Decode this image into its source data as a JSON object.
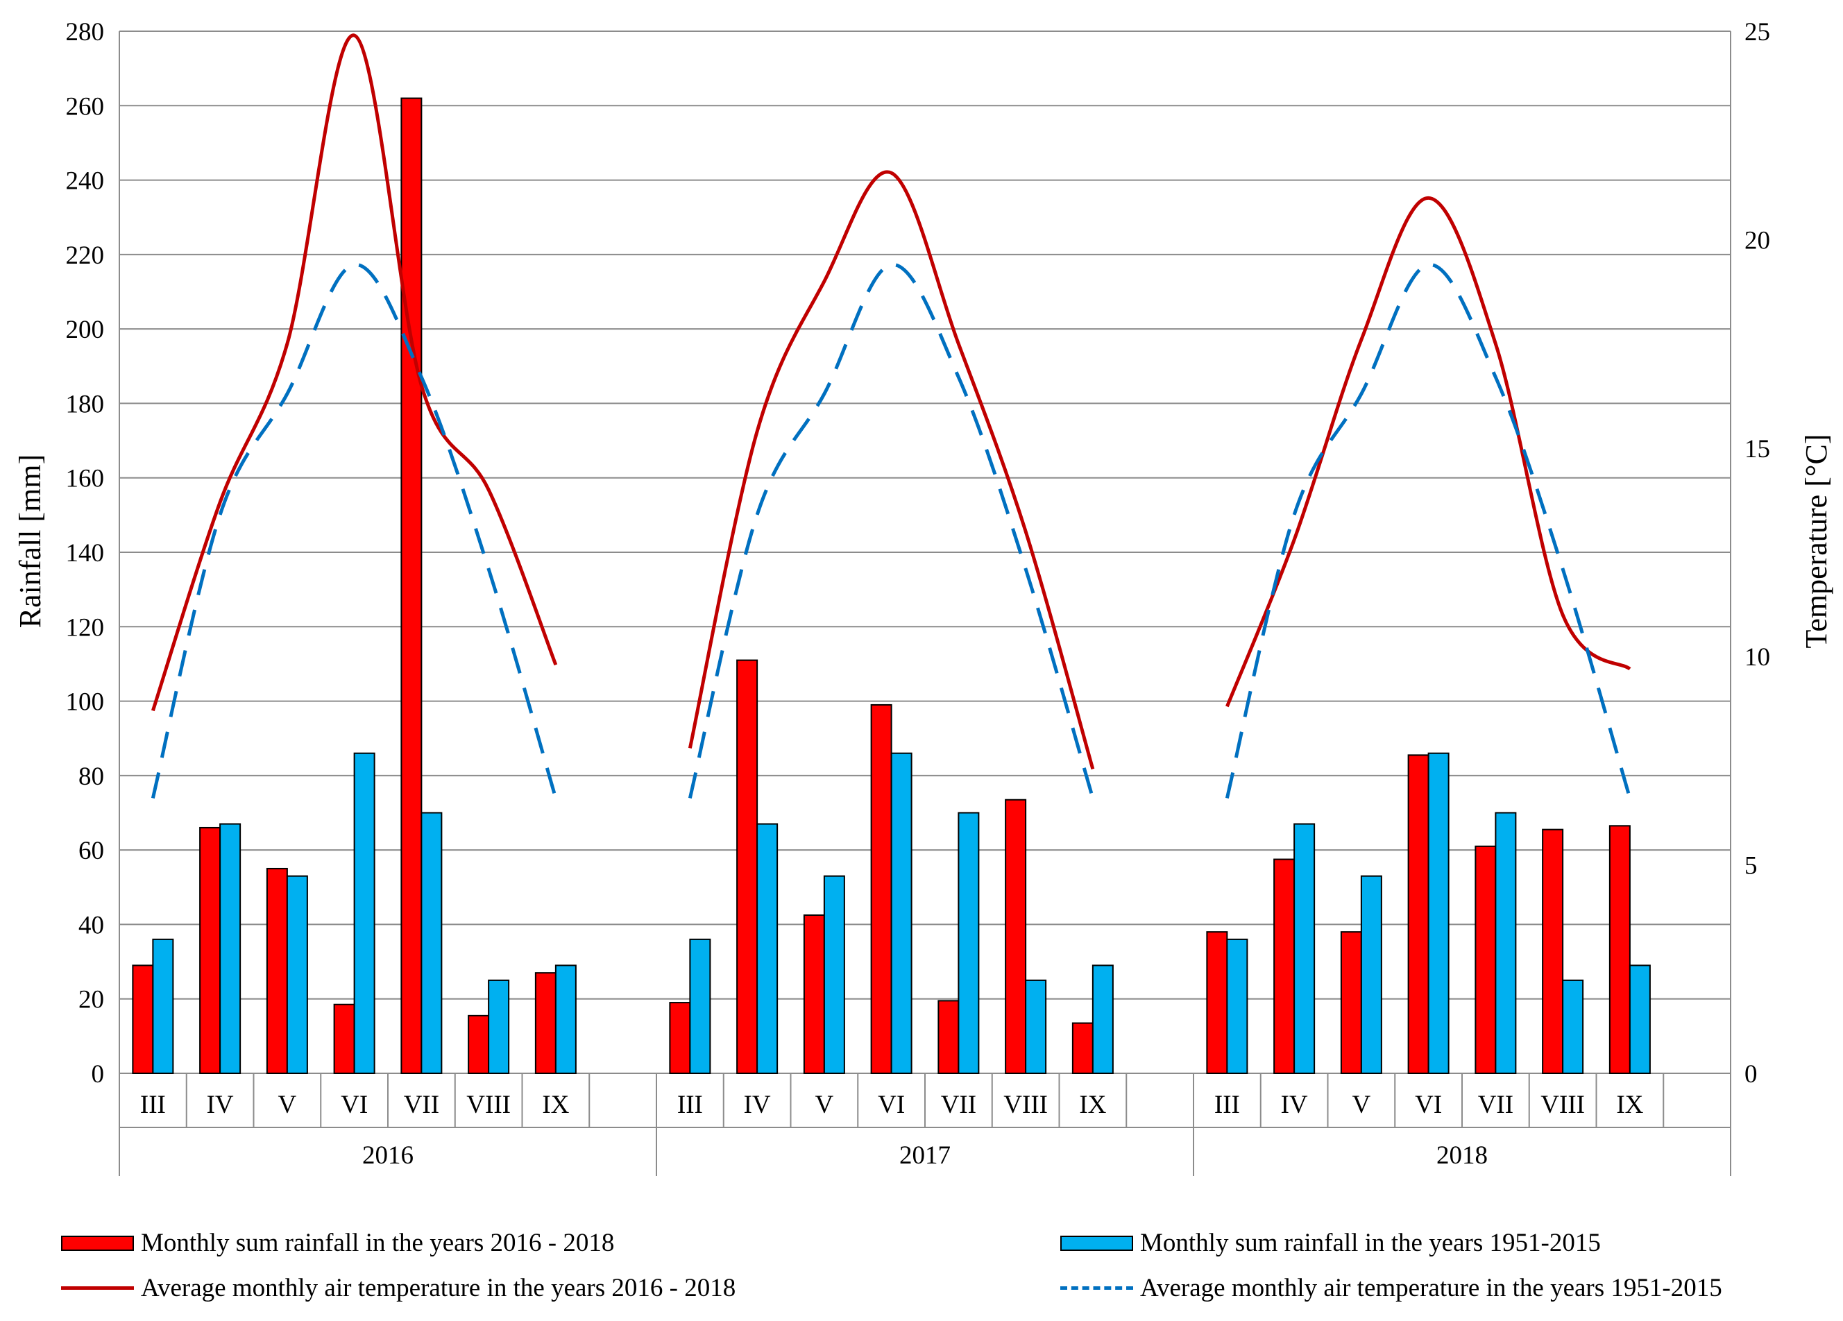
{
  "chart_data": {
    "type": "bar",
    "years": [
      "2016",
      "2017",
      "2018"
    ],
    "months": [
      "III",
      "IV",
      "V",
      "VI",
      "VII",
      "VIII",
      "IX"
    ],
    "ylabel": "Rainfall [mm]",
    "y2label": "Temperature [°C]",
    "ylim": [
      0,
      280
    ],
    "y2lim": [
      0,
      25
    ],
    "yticks": [
      "0",
      "20",
      "40",
      "60",
      "80",
      "100",
      "120",
      "140",
      "160",
      "180",
      "200",
      "220",
      "240",
      "260",
      "280"
    ],
    "y2ticks": [
      "0",
      "5",
      "10",
      "15",
      "20",
      "25"
    ],
    "grid": true,
    "legend_position": "bottom",
    "series": [
      {
        "name": "Monthly sum rainfall in the years 2016 - 2018",
        "kind": "bar",
        "axis": "left",
        "color": "#ff0000",
        "values": [
          [
            29,
            66,
            55,
            18.5,
            262,
            15.5,
            27
          ],
          [
            19,
            111,
            42.5,
            99,
            19.5,
            73.5,
            13.5
          ],
          [
            38,
            57.5,
            38,
            85.5,
            61,
            65.5,
            66.5
          ]
        ]
      },
      {
        "name": "Monthly sum rainfall in the years 1951-2015",
        "kind": "bar",
        "axis": "left",
        "color": "#00b0f0",
        "values": [
          [
            36,
            67,
            53,
            86,
            70,
            25,
            29
          ],
          [
            36,
            67,
            53,
            86,
            70,
            25,
            29
          ],
          [
            36,
            67,
            53,
            86,
            70,
            25,
            29
          ]
        ]
      },
      {
        "name": "Average monthly air temperature in the years 2016 - 2018",
        "kind": "line",
        "axis": "right",
        "color": "#c00000",
        "values": [
          [
            8.7,
            13.7,
            17.5,
            24.9,
            16.5,
            14.0,
            9.8
          ],
          [
            7.8,
            15.4,
            19.0,
            21.6,
            17.5,
            13.0,
            7.3
          ],
          [
            8.8,
            12.8,
            17.6,
            21.0,
            17.5,
            11.0,
            9.7
          ]
        ]
      },
      {
        "name": "Average monthly air temperature in the years 1951-2015",
        "kind": "line",
        "axis": "right",
        "color": "#0070c0",
        "dashed": true,
        "values": [
          [
            6.6,
            13.4,
            16.3,
            19.4,
            16.7,
            12.1,
            6.6
          ],
          [
            6.6,
            13.4,
            16.3,
            19.4,
            16.7,
            12.1,
            6.6
          ],
          [
            6.6,
            13.4,
            16.3,
            19.4,
            16.7,
            12.1,
            6.6
          ]
        ]
      }
    ]
  }
}
